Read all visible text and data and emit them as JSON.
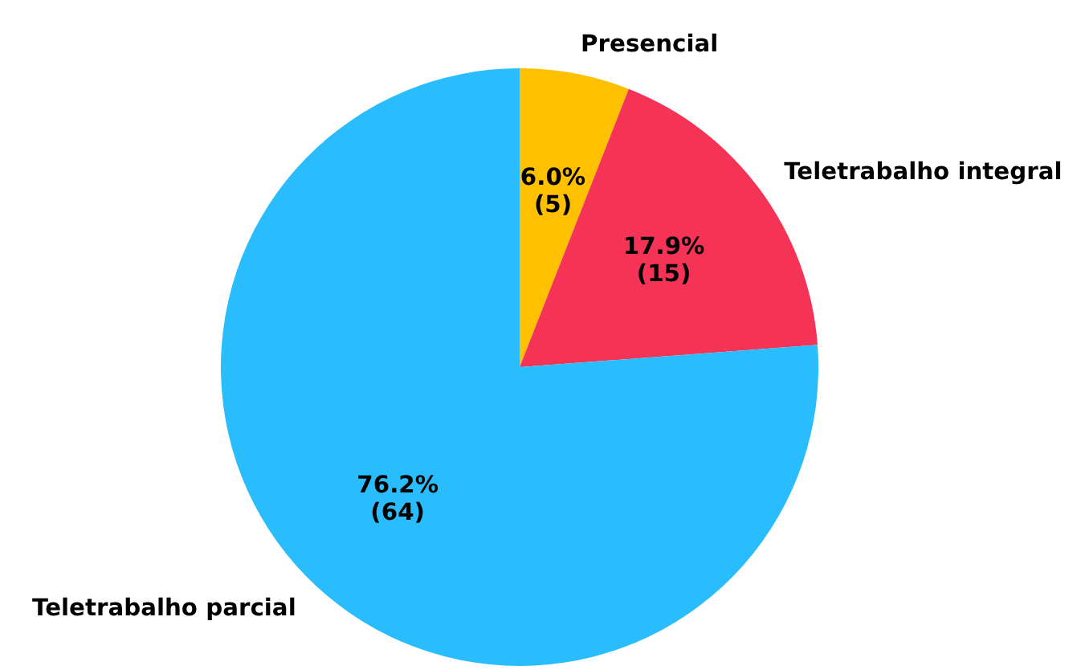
{
  "chart_data": {
    "type": "pie",
    "categories": [
      "Presencial",
      "Teletrabalho integral",
      "Teletrabalho parcial"
    ],
    "values": [
      5,
      15,
      64
    ],
    "colors": [
      "#ffc000",
      "#f43356",
      "#29bdfd"
    ],
    "value_labels": [
      "6.0%\n(5)",
      "17.9%\n(15)",
      "76.2%\n(64)"
    ]
  }
}
